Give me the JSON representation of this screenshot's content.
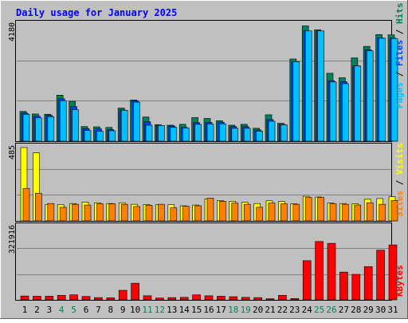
{
  "title": "Daily usage for January 2025",
  "colors": {
    "background": "#c0c0c0",
    "title": "#0000ff",
    "hits": "#00805c",
    "files": "#0040ff",
    "pages": "#00c0ff",
    "visits": "#ff8000",
    "sites": "#ffff00",
    "kbytes": "#ff0000",
    "weekend_label": "#00805c",
    "day_label": "#000000"
  },
  "chart_data": [
    {
      "type": "bar",
      "panel": "hits-files-pages",
      "ymax_label": "4180",
      "ylim": [
        0,
        4180
      ],
      "legend": [
        "Pages",
        "Files",
        "Hits"
      ],
      "categories": [
        "1",
        "2",
        "3",
        "4",
        "5",
        "6",
        "7",
        "8",
        "9",
        "10",
        "11",
        "12",
        "13",
        "14",
        "15",
        "16",
        "17",
        "18",
        "19",
        "20",
        "21",
        "22",
        "23",
        "24",
        "25",
        "26",
        "27",
        "28",
        "29",
        "30",
        "31"
      ],
      "series": [
        {
          "name": "Hits",
          "values": [
            1060,
            970,
            960,
            1640,
            1420,
            520,
            510,
            490,
            1180,
            1470,
            860,
            590,
            570,
            600,
            840,
            810,
            730,
            570,
            600,
            460,
            940,
            640,
            2930,
            4110,
            3970,
            2420,
            2260,
            2970,
            3380,
            3800,
            3790
          ]
        },
        {
          "name": "Files",
          "values": [
            1000,
            890,
            920,
            1510,
            1230,
            450,
            440,
            410,
            1110,
            1440,
            690,
            560,
            540,
            490,
            660,
            670,
            670,
            520,
            520,
            400,
            770,
            590,
            2830,
            3930,
            3930,
            2150,
            2120,
            2690,
            3250,
            3680,
            3670
          ]
        },
        {
          "name": "Pages",
          "values": [
            960,
            830,
            870,
            1440,
            1120,
            380,
            350,
            370,
            1100,
            1390,
            570,
            560,
            490,
            470,
            600,
            610,
            620,
            460,
            460,
            360,
            710,
            580,
            2830,
            3930,
            3930,
            2110,
            2050,
            2680,
            3220,
            3670,
            3660
          ]
        }
      ]
    },
    {
      "type": "bar",
      "panel": "visits-sites",
      "ymax_label": "485",
      "ylim": [
        0,
        485
      ],
      "legend": [
        "Sites",
        "Visits"
      ],
      "categories": [
        "1",
        "2",
        "3",
        "4",
        "5",
        "6",
        "7",
        "8",
        "9",
        "10",
        "11",
        "12",
        "13",
        "14",
        "15",
        "16",
        "17",
        "18",
        "19",
        "20",
        "21",
        "22",
        "23",
        "24",
        "25",
        "26",
        "27",
        "28",
        "29",
        "30",
        "31"
      ],
      "series": [
        {
          "name": "Visits",
          "values": [
            215,
            183,
            115,
            90,
            110,
            105,
            113,
            113,
            110,
            95,
            103,
            110,
            86,
            98,
            100,
            150,
            130,
            118,
            110,
            90,
            118,
            113,
            110,
            155,
            155,
            113,
            110,
            105,
            120,
            110,
            135
          ]
        },
        {
          "name": "Sites",
          "values": [
            485,
            450,
            108,
            108,
            115,
            124,
            120,
            115,
            120,
            110,
            108,
            108,
            108,
            100,
            105,
            145,
            135,
            130,
            123,
            115,
            133,
            128,
            113,
            163,
            158,
            118,
            115,
            113,
            143,
            148,
            160
          ]
        }
      ]
    },
    {
      "type": "bar",
      "panel": "kbytes",
      "ymax_label": "321916",
      "ylim": [
        0,
        321916
      ],
      "legend": [
        "KBytes"
      ],
      "categories": [
        "1",
        "2",
        "3",
        "4",
        "5",
        "6",
        "7",
        "8",
        "9",
        "10",
        "11",
        "12",
        "13",
        "14",
        "15",
        "16",
        "17",
        "18",
        "19",
        "20",
        "21",
        "22",
        "23",
        "24",
        "25",
        "26",
        "27",
        "28",
        "29",
        "30",
        "31"
      ],
      "series": [
        {
          "name": "KBytes",
          "values": [
            17000,
            16000,
            16000,
            20000,
            22000,
            15000,
            10000,
            9000,
            42000,
            73000,
            18000,
            8000,
            10000,
            11000,
            22000,
            18000,
            16000,
            14000,
            11000,
            10000,
            5000,
            20000,
            6000,
            172000,
            256000,
            248000,
            122000,
            112000,
            146000,
            218000,
            241000
          ]
        }
      ]
    }
  ],
  "weekend_days": [
    "4",
    "5",
    "11",
    "12",
    "18",
    "19",
    "25",
    "26"
  ]
}
